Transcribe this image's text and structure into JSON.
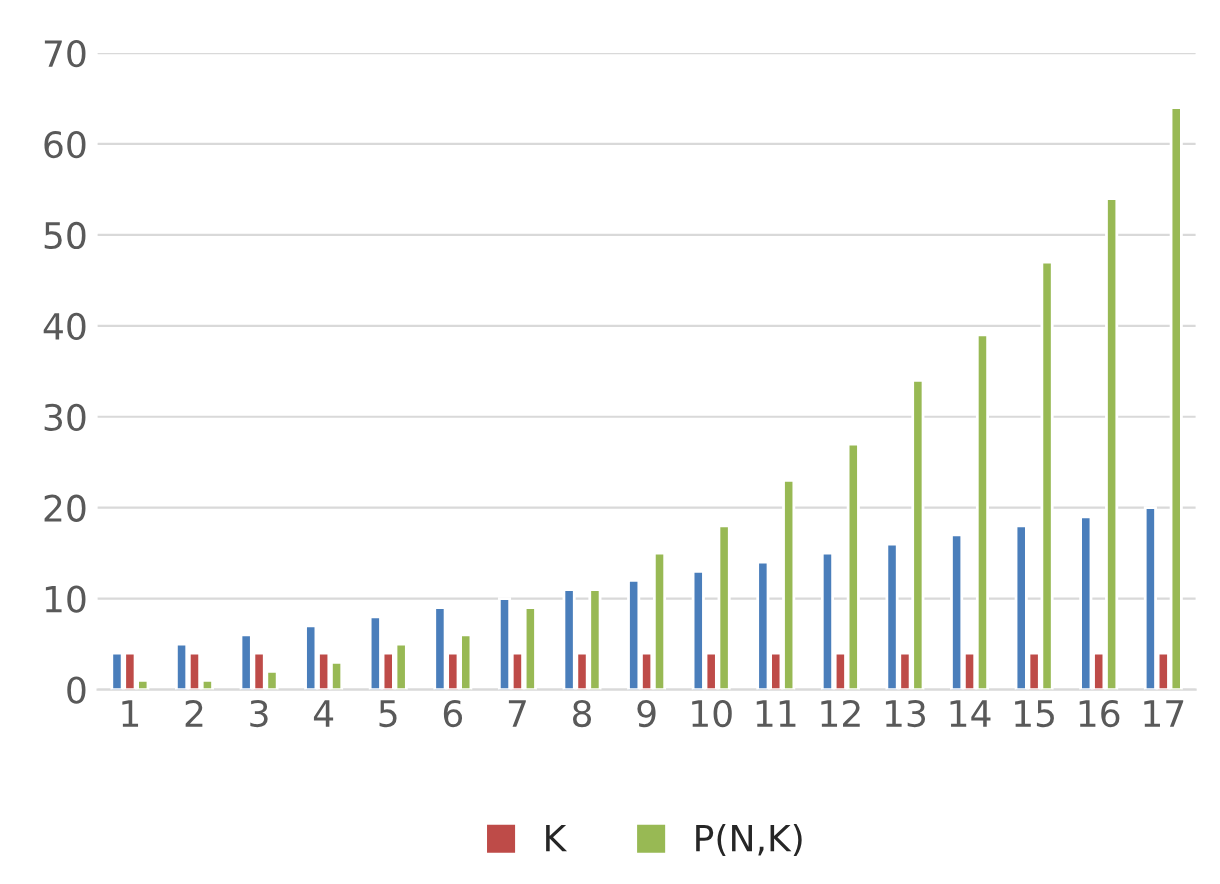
{
  "chart_data": {
    "type": "bar",
    "categories": [
      "1",
      "2",
      "3",
      "4",
      "5",
      "6",
      "7",
      "8",
      "9",
      "10",
      "11",
      "12",
      "13",
      "14",
      "15",
      "16",
      "17"
    ],
    "series": [
      {
        "color": "#4a7ebb",
        "values": [
          4,
          5,
          6,
          7,
          8,
          9,
          10,
          11,
          12,
          13,
          14,
          15,
          16,
          17,
          18,
          19,
          20
        ]
      },
      {
        "name": "K",
        "color": "#be4b48",
        "values": [
          4,
          4,
          4,
          4,
          4,
          4,
          4,
          4,
          4,
          4,
          4,
          4,
          4,
          4,
          4,
          4,
          4
        ]
      },
      {
        "name": "P(N,K)",
        "color": "#98b954",
        "values": [
          1,
          1,
          2,
          3,
          5,
          6,
          9,
          11,
          15,
          18,
          23,
          27,
          34,
          39,
          47,
          54,
          64
        ]
      }
    ],
    "ylim": [
      0,
      70
    ],
    "yticks": [
      0,
      10,
      20,
      30,
      40,
      50,
      60,
      70
    ],
    "grid": "y",
    "legend": "bottom"
  }
}
